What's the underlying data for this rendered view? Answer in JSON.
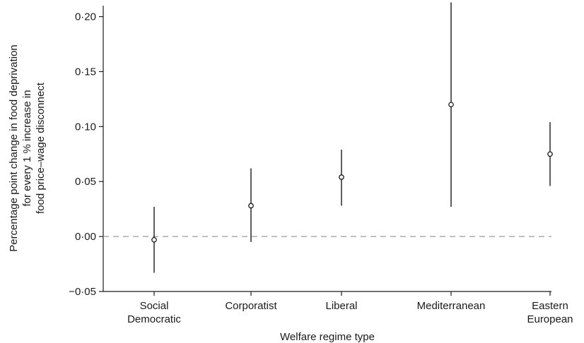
{
  "chart_data": {
    "type": "scatter",
    "title": "",
    "xlabel": "Welfare regime type",
    "ylabel_lines": [
      "Percentage point change in food deprivation",
      "for every 1 % increase in",
      "food price–wage disconnect"
    ],
    "ylim": [
      -0.05,
      0.21
    ],
    "yticks": [
      -0.05,
      0.0,
      0.05,
      0.1,
      0.15,
      0.2
    ],
    "ytick_labels": [
      "−0·05",
      "0·00",
      "0·05",
      "0·10",
      "0·15",
      "0·20"
    ],
    "categories": [
      [
        "Social",
        "Democratic"
      ],
      [
        "Corporatist"
      ],
      [
        "Liberal"
      ],
      [
        "Mediterranean"
      ],
      [
        "Eastern",
        "European"
      ]
    ],
    "points": [
      {
        "estimate": -0.003,
        "lower": -0.033,
        "upper": 0.027
      },
      {
        "estimate": 0.028,
        "lower": -0.005,
        "upper": 0.062
      },
      {
        "estimate": 0.054,
        "lower": 0.028,
        "upper": 0.079
      },
      {
        "estimate": 0.12,
        "lower": 0.027,
        "upper": 0.213
      },
      {
        "estimate": 0.075,
        "lower": 0.046,
        "upper": 0.104
      }
    ],
    "reference_line": 0.0,
    "grid": false
  }
}
